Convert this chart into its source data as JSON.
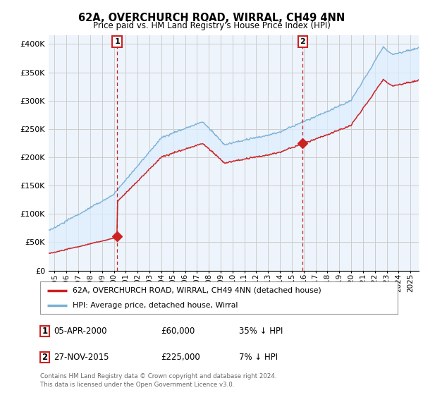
{
  "title": "62A, OVERCHURCH ROAD, WIRRAL, CH49 4NN",
  "subtitle": "Price paid vs. HM Land Registry's House Price Index (HPI)",
  "ylabel_ticks": [
    "£0",
    "£50K",
    "£100K",
    "£150K",
    "£200K",
    "£250K",
    "£300K",
    "£350K",
    "£400K"
  ],
  "ytick_values": [
    0,
    50000,
    100000,
    150000,
    200000,
    250000,
    300000,
    350000,
    400000
  ],
  "ylim": [
    0,
    415000
  ],
  "xlim_start": 1994.5,
  "xlim_end": 2025.7,
  "sale1_x": 2000.27,
  "sale1_y": 60000,
  "sale2_x": 2015.92,
  "sale2_y": 225000,
  "line1_color": "#cc2222",
  "line2_color": "#7ab0d4",
  "fill_color": "#ddeeff",
  "vline_color": "#cc2222",
  "legend1_label": "62A, OVERCHURCH ROAD, WIRRAL, CH49 4NN (detached house)",
  "legend2_label": "HPI: Average price, detached house, Wirral",
  "table_row1": [
    "1",
    "05-APR-2000",
    "£60,000",
    "35% ↓ HPI"
  ],
  "table_row2": [
    "2",
    "27-NOV-2015",
    "£225,000",
    "7% ↓ HPI"
  ],
  "footer": "Contains HM Land Registry data © Crown copyright and database right 2024.\nThis data is licensed under the Open Government Licence v3.0.",
  "background_color": "#ffffff",
  "grid_color": "#cccccc",
  "chart_bg": "#eef4fb"
}
